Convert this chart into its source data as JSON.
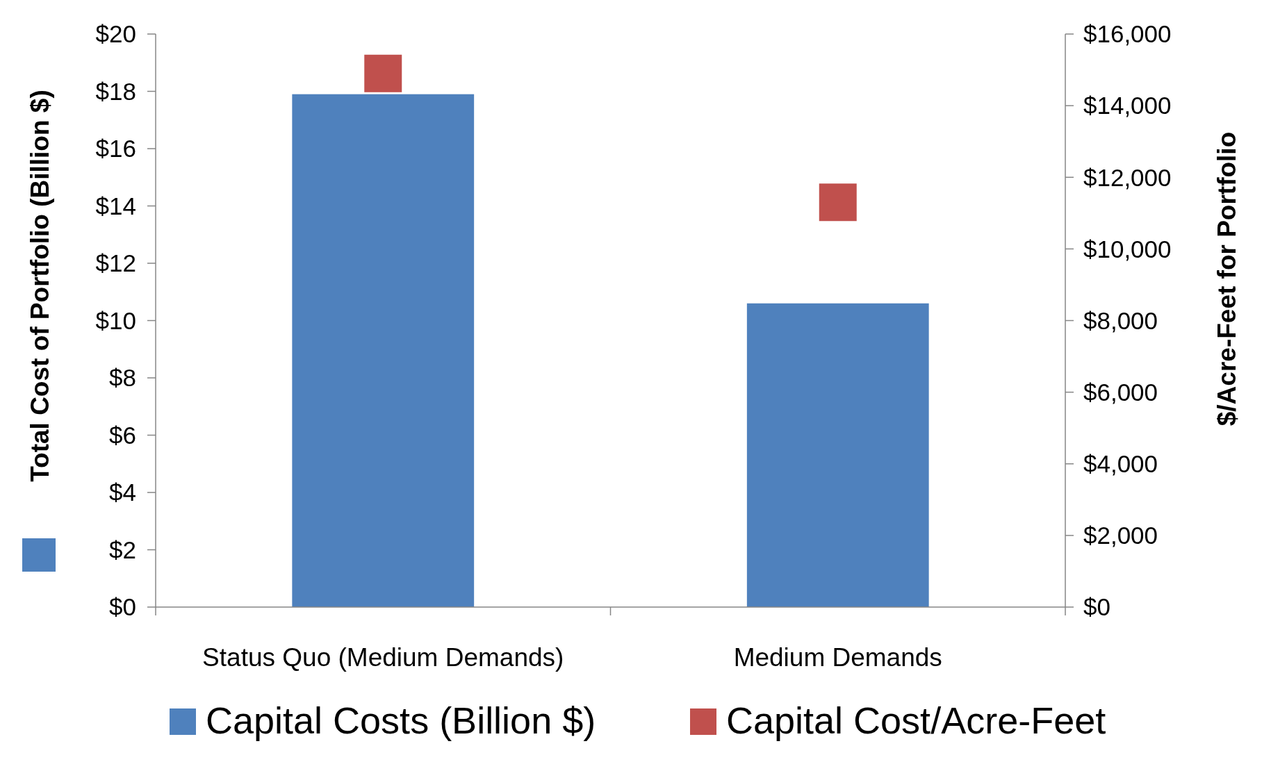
{
  "chart_data": {
    "type": "bar",
    "categories": [
      "Status Quo (Medium Demands)",
      "Medium Demands"
    ],
    "series": [
      {
        "name": "Capital Costs (Billion $)",
        "type": "bar",
        "color": "#4f81bd",
        "values": [
          17.9,
          10.6
        ]
      },
      {
        "name": "Capital Cost/Acre-Feet",
        "type": "scatter",
        "axis": "y2",
        "color": "#c0504d",
        "values": [
          14900,
          11300
        ]
      }
    ],
    "ylabel": "Total Cost of Portfolio (Billion $)",
    "y2label": "$/Acre-Feet for Portfolio",
    "ylim": [
      0,
      20
    ],
    "yticks": [
      {
        "value": 0,
        "label": "$0"
      },
      {
        "value": 2,
        "label": "$2"
      },
      {
        "value": 4,
        "label": "$4"
      },
      {
        "value": 6,
        "label": "$6"
      },
      {
        "value": 8,
        "label": "$8"
      },
      {
        "value": 10,
        "label": "$10"
      },
      {
        "value": 12,
        "label": "$12"
      },
      {
        "value": 14,
        "label": "$14"
      },
      {
        "value": 16,
        "label": "$16"
      },
      {
        "value": 18,
        "label": "$18"
      },
      {
        "value": 20,
        "label": "$20"
      }
    ],
    "y2lim": [
      0,
      16000
    ],
    "y2ticks": [
      {
        "value": 0,
        "label": "$0"
      },
      {
        "value": 2000,
        "label": "$2,000"
      },
      {
        "value": 4000,
        "label": "$4,000"
      },
      {
        "value": 6000,
        "label": "$6,000"
      },
      {
        "value": 8000,
        "label": "$8,000"
      },
      {
        "value": 10000,
        "label": "$10,000"
      },
      {
        "value": 12000,
        "label": "$12,000"
      },
      {
        "value": 14000,
        "label": "$14,000"
      },
      {
        "value": 16000,
        "label": "$16,000"
      }
    ],
    "marker": "square",
    "grid": false,
    "legend": "bottom"
  }
}
